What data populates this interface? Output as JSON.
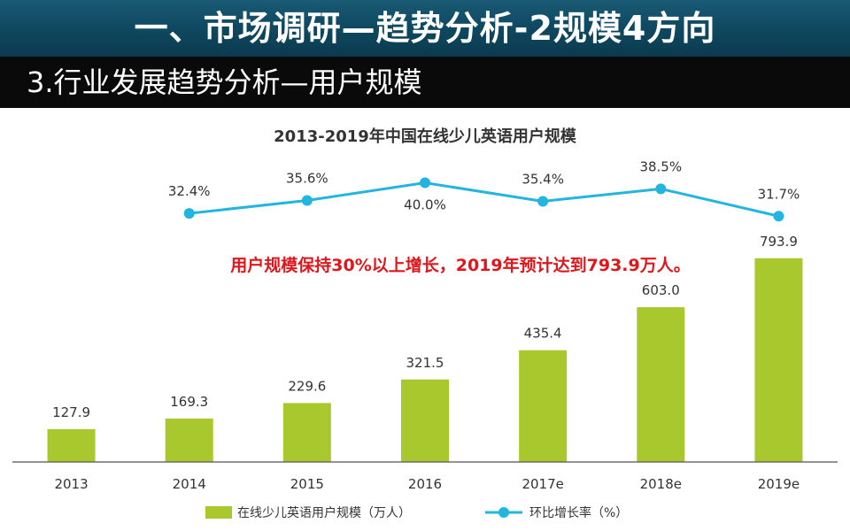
{
  "slide": {
    "title": "一、市场调研—趋势分析-2规模4方向",
    "subtitle": "3.行业发展趋势分析—用户规模"
  },
  "colors": {
    "bar": "#a9c82d",
    "line": "#22b5e0",
    "annotation": "#e0161b",
    "header": "#0f4a62"
  },
  "chart_data": {
    "type": "bar",
    "title": "2013-2019年中国在线少儿英语用户规模",
    "categories": [
      "2013",
      "2014",
      "2015",
      "2016",
      "2017e",
      "2018e",
      "2019e"
    ],
    "series": [
      {
        "name": "在线少儿英语用户规模（万人）",
        "type": "bar",
        "values": [
          127.9,
          169.3,
          229.6,
          321.5,
          435.4,
          603.0,
          793.9
        ],
        "labels": [
          "127.9",
          "169.3",
          "229.6",
          "321.5",
          "435.4",
          "603.0",
          "793.9"
        ]
      },
      {
        "name": "环比增长率（%）",
        "type": "line",
        "x": [
          "2014",
          "2015",
          "2016",
          "2017e",
          "2018e",
          "2019e"
        ],
        "values": [
          32.4,
          35.6,
          40.0,
          35.4,
          38.5,
          31.7
        ],
        "labels": [
          "32.4%",
          "35.6%",
          "40.0%",
          "35.4%",
          "38.5%",
          "31.7%"
        ]
      }
    ],
    "ylim_bar": [
      0,
      800
    ],
    "legend": "bottom",
    "annotation": "用户规模保持30%以上增长，2019年预计达到793.9万人。"
  }
}
